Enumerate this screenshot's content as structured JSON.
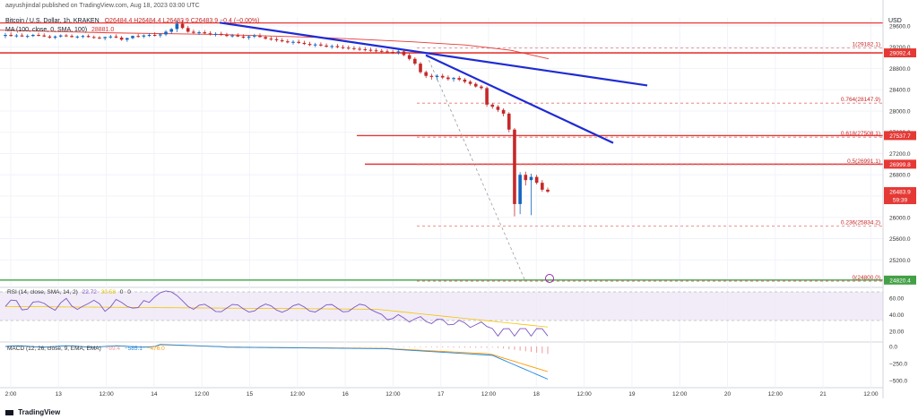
{
  "header": {
    "publisher_line": "aayushjindal published on TradingView.com, Aug 18, 2023 03:00 UTC",
    "symbol_line": "Bitcoin / U.S. Dollar, 1h, KRAKEN",
    "ohlc": "O26484.4  H26484.4  L26483.9  C26483.9  −0.4 (−0.00%)",
    "ma_label": "MA (100, close, 0, SMA, 100)",
    "ma_value": "28881.0",
    "currency": "USD"
  },
  "rsi": {
    "label": "RSI (14, close, SMA, 14, 2)",
    "v1": "22.72",
    "v2": "33.58",
    "v3": "0",
    "v4": "0",
    "ticks": [
      "60.00",
      "40.00",
      "20.00"
    ]
  },
  "macd": {
    "label": "MACD (12, 26, close, 9, EMA, EMA)",
    "v1": "−89.4",
    "v2": "−585.1",
    "v3": "−476.0",
    "ticks": [
      "0.0",
      "−250.0",
      "−500.0"
    ]
  },
  "footer": {
    "brand": "TradingView"
  },
  "chart_data": {
    "type": "candlestick",
    "title": "Bitcoin / U.S. Dollar, 1h, KRAKEN",
    "ylim": [
      24700,
      29750
    ],
    "y_ticks": [
      29600,
      29200,
      28800,
      28400,
      28000,
      27600,
      27200,
      26800,
      26400,
      26000,
      25600,
      25200
    ],
    "x_ticks": [
      "2:00",
      "13",
      "12:00",
      "14",
      "12:00",
      "15",
      "12:00",
      "16",
      "12:00",
      "17",
      "12:00",
      "18",
      "12:00",
      "19",
      "12:00",
      "20",
      "12:00",
      "21",
      "12:00"
    ],
    "price_tags": [
      {
        "value": 29092.4,
        "label": "29092.4",
        "color": "#e53935"
      },
      {
        "value": 27537.7,
        "label": "27537.7",
        "color": "#e53935"
      },
      {
        "value": 26999.8,
        "label": "26999.8",
        "color": "#e53935"
      },
      {
        "value": 26483.9,
        "label": "26483.9",
        "color": "#e53935"
      },
      {
        "value": 26483.9,
        "label": "59:39",
        "color": "#e53935"
      },
      {
        "value": 24820.4,
        "label": "24820.4",
        "color": "#43a047"
      }
    ],
    "fib_levels": [
      {
        "label": "1(29182.1)",
        "value": 29182.1
      },
      {
        "label": "0.764(28147.9)",
        "value": 28147.9
      },
      {
        "label": "0.618(27508.1)",
        "value": 27508.1
      },
      {
        "label": "0.5(26991.1)",
        "value": 26991.1
      },
      {
        "label": "0.236(25834.2)",
        "value": 25834.2
      },
      {
        "label": "0(24800.0)",
        "value": 24800.0
      }
    ],
    "horizontal_lines": [
      29655,
      29092.4,
      27537.7,
      26999.8,
      24820.4
    ],
    "trend_lines": [
      {
        "x1": 245,
        "p1": 29660,
        "x2": 722,
        "p2": 28480
      },
      {
        "x1": 475,
        "p1": 29050,
        "x2": 684,
        "p2": 27400
      }
    ],
    "candles": [
      {
        "o": 29410,
        "h": 29470,
        "l": 29370,
        "c": 29430
      },
      {
        "o": 29430,
        "h": 29480,
        "l": 29400,
        "c": 29410
      },
      {
        "o": 29410,
        "h": 29450,
        "l": 29380,
        "c": 29420
      },
      {
        "o": 29420,
        "h": 29460,
        "l": 29400,
        "c": 29400
      },
      {
        "o": 29400,
        "h": 29440,
        "l": 29370,
        "c": 29410
      },
      {
        "o": 29410,
        "h": 29450,
        "l": 29390,
        "c": 29430
      },
      {
        "o": 29430,
        "h": 29470,
        "l": 29400,
        "c": 29420
      },
      {
        "o": 29420,
        "h": 29460,
        "l": 29390,
        "c": 29400
      },
      {
        "o": 29400,
        "h": 29430,
        "l": 29360,
        "c": 29380
      },
      {
        "o": 29380,
        "h": 29420,
        "l": 29350,
        "c": 29400
      },
      {
        "o": 29400,
        "h": 29440,
        "l": 29380,
        "c": 29420
      },
      {
        "o": 29420,
        "h": 29450,
        "l": 29390,
        "c": 29410
      },
      {
        "o": 29410,
        "h": 29440,
        "l": 29380,
        "c": 29390
      },
      {
        "o": 29390,
        "h": 29420,
        "l": 29360,
        "c": 29400
      },
      {
        "o": 29400,
        "h": 29430,
        "l": 29370,
        "c": 29410
      },
      {
        "o": 29410,
        "h": 29440,
        "l": 29380,
        "c": 29390
      },
      {
        "o": 29390,
        "h": 29420,
        "l": 29360,
        "c": 29380
      },
      {
        "o": 29380,
        "h": 29410,
        "l": 29350,
        "c": 29370
      },
      {
        "o": 29370,
        "h": 29400,
        "l": 29330,
        "c": 29390
      },
      {
        "o": 29390,
        "h": 29430,
        "l": 29360,
        "c": 29400
      },
      {
        "o": 29400,
        "h": 29440,
        "l": 29370,
        "c": 29380
      },
      {
        "o": 29380,
        "h": 29410,
        "l": 29320,
        "c": 29340
      },
      {
        "o": 29340,
        "h": 29380,
        "l": 29300,
        "c": 29370
      },
      {
        "o": 29370,
        "h": 29420,
        "l": 29350,
        "c": 29410
      },
      {
        "o": 29410,
        "h": 29450,
        "l": 29380,
        "c": 29400
      },
      {
        "o": 29400,
        "h": 29440,
        "l": 29370,
        "c": 29420
      },
      {
        "o": 29420,
        "h": 29460,
        "l": 29390,
        "c": 29430
      },
      {
        "o": 29430,
        "h": 29480,
        "l": 29400,
        "c": 29420
      },
      {
        "o": 29420,
        "h": 29460,
        "l": 29380,
        "c": 29440
      },
      {
        "o": 29440,
        "h": 29520,
        "l": 29410,
        "c": 29490
      },
      {
        "o": 29490,
        "h": 29560,
        "l": 29450,
        "c": 29540
      },
      {
        "o": 29540,
        "h": 29700,
        "l": 29480,
        "c": 29640
      },
      {
        "o": 29640,
        "h": 29700,
        "l": 29540,
        "c": 29560
      },
      {
        "o": 29560,
        "h": 29600,
        "l": 29470,
        "c": 29490
      },
      {
        "o": 29490,
        "h": 29530,
        "l": 29440,
        "c": 29470
      },
      {
        "o": 29470,
        "h": 29510,
        "l": 29430,
        "c": 29480
      },
      {
        "o": 29480,
        "h": 29520,
        "l": 29440,
        "c": 29460
      },
      {
        "o": 29460,
        "h": 29500,
        "l": 29420,
        "c": 29440
      },
      {
        "o": 29440,
        "h": 29480,
        "l": 29400,
        "c": 29450
      },
      {
        "o": 29450,
        "h": 29490,
        "l": 29410,
        "c": 29430
      },
      {
        "o": 29430,
        "h": 29470,
        "l": 29390,
        "c": 29410
      },
      {
        "o": 29410,
        "h": 29450,
        "l": 29380,
        "c": 29420
      },
      {
        "o": 29420,
        "h": 29460,
        "l": 29390,
        "c": 29400
      },
      {
        "o": 29400,
        "h": 29440,
        "l": 29360,
        "c": 29380
      },
      {
        "o": 29380,
        "h": 29420,
        "l": 29340,
        "c": 29400
      },
      {
        "o": 29400,
        "h": 29450,
        "l": 29370,
        "c": 29420
      },
      {
        "o": 29420,
        "h": 29460,
        "l": 29380,
        "c": 29390
      },
      {
        "o": 29390,
        "h": 29420,
        "l": 29340,
        "c": 29360
      },
      {
        "o": 29360,
        "h": 29400,
        "l": 29320,
        "c": 29350
      },
      {
        "o": 29350,
        "h": 29390,
        "l": 29300,
        "c": 29330
      },
      {
        "o": 29330,
        "h": 29370,
        "l": 29290,
        "c": 29310
      },
      {
        "o": 29310,
        "h": 29350,
        "l": 29270,
        "c": 29290
      },
      {
        "o": 29290,
        "h": 29330,
        "l": 29250,
        "c": 29300
      },
      {
        "o": 29300,
        "h": 29340,
        "l": 29260,
        "c": 29280
      },
      {
        "o": 29280,
        "h": 29320,
        "l": 29240,
        "c": 29260
      },
      {
        "o": 29260,
        "h": 29300,
        "l": 29220,
        "c": 29240
      },
      {
        "o": 29240,
        "h": 29280,
        "l": 29200,
        "c": 29250
      },
      {
        "o": 29250,
        "h": 29290,
        "l": 29210,
        "c": 29230
      },
      {
        "o": 29230,
        "h": 29270,
        "l": 29190,
        "c": 29210
      },
      {
        "o": 29210,
        "h": 29250,
        "l": 29170,
        "c": 29220
      },
      {
        "o": 29220,
        "h": 29260,
        "l": 29180,
        "c": 29200
      },
      {
        "o": 29200,
        "h": 29240,
        "l": 29160,
        "c": 29190
      },
      {
        "o": 29190,
        "h": 29230,
        "l": 29150,
        "c": 29180
      },
      {
        "o": 29180,
        "h": 29220,
        "l": 29140,
        "c": 29170
      },
      {
        "o": 29170,
        "h": 29210,
        "l": 29130,
        "c": 29160
      },
      {
        "o": 29160,
        "h": 29200,
        "l": 29120,
        "c": 29150
      },
      {
        "o": 29150,
        "h": 29190,
        "l": 29110,
        "c": 29140
      },
      {
        "o": 29140,
        "h": 29180,
        "l": 29100,
        "c": 29130
      },
      {
        "o": 29130,
        "h": 29170,
        "l": 29090,
        "c": 29120
      },
      {
        "o": 29120,
        "h": 29160,
        "l": 29080,
        "c": 29110
      },
      {
        "o": 29110,
        "h": 29150,
        "l": 29070,
        "c": 29100
      },
      {
        "o": 29100,
        "h": 29150,
        "l": 29060,
        "c": 29120
      },
      {
        "o": 29120,
        "h": 29160,
        "l": 29030,
        "c": 29050
      },
      {
        "o": 29050,
        "h": 29080,
        "l": 28950,
        "c": 28980
      },
      {
        "o": 28980,
        "h": 29010,
        "l": 28860,
        "c": 28890
      },
      {
        "o": 28890,
        "h": 28920,
        "l": 28700,
        "c": 28730
      },
      {
        "o": 28730,
        "h": 28760,
        "l": 28620,
        "c": 28660
      },
      {
        "o": 28660,
        "h": 28700,
        "l": 28590,
        "c": 28640
      },
      {
        "o": 28640,
        "h": 28690,
        "l": 28580,
        "c": 28660
      },
      {
        "o": 28660,
        "h": 28700,
        "l": 28600,
        "c": 28630
      },
      {
        "o": 28630,
        "h": 28670,
        "l": 28570,
        "c": 28600
      },
      {
        "o": 28600,
        "h": 28640,
        "l": 28550,
        "c": 28620
      },
      {
        "o": 28620,
        "h": 28660,
        "l": 28560,
        "c": 28590
      },
      {
        "o": 28590,
        "h": 28620,
        "l": 28520,
        "c": 28550
      },
      {
        "o": 28550,
        "h": 28580,
        "l": 28480,
        "c": 28510
      },
      {
        "o": 28510,
        "h": 28540,
        "l": 28440,
        "c": 28460
      },
      {
        "o": 28460,
        "h": 28490,
        "l": 28400,
        "c": 28430
      },
      {
        "o": 28430,
        "h": 28460,
        "l": 28080,
        "c": 28120
      },
      {
        "o": 28120,
        "h": 28150,
        "l": 28040,
        "c": 28080
      },
      {
        "o": 28080,
        "h": 28110,
        "l": 27980,
        "c": 28020
      },
      {
        "o": 28020,
        "h": 28050,
        "l": 27900,
        "c": 27950
      },
      {
        "o": 27950,
        "h": 27980,
        "l": 27600,
        "c": 27650
      },
      {
        "o": 27650,
        "h": 27680,
        "l": 26020,
        "c": 26250
      },
      {
        "o": 26250,
        "h": 26850,
        "l": 26060,
        "c": 26800
      },
      {
        "o": 26800,
        "h": 26860,
        "l": 26600,
        "c": 26700
      },
      {
        "o": 26700,
        "h": 26820,
        "l": 26040,
        "c": 26760
      },
      {
        "o": 26760,
        "h": 26800,
        "l": 26620,
        "c": 26650
      },
      {
        "o": 26650,
        "h": 26700,
        "l": 26480,
        "c": 26520
      },
      {
        "o": 26520,
        "h": 26560,
        "l": 26460,
        "c": 26483.9
      }
    ]
  }
}
